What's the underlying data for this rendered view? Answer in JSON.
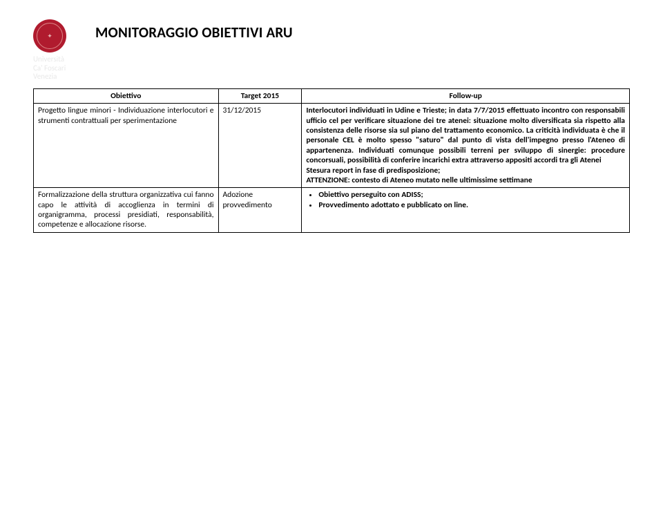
{
  "logo": {
    "univ_line1": "Università",
    "univ_line2": "Ca' Foscari",
    "univ_line3": "Venezia",
    "seal_color": "#b01b2e"
  },
  "title": "MONITORAGGIO OBIETTIVI ARU",
  "table": {
    "headers": {
      "col1": "Obiettivo",
      "col2": "Target 2015",
      "col3": "Follow-up"
    },
    "rows": [
      {
        "obiettivo": "Progetto lingue minori - Individuazione interlocutori e strumenti contrattuali per sperimentazione",
        "target": "31/12/2015",
        "followup_para1": "Interlocutori individuati in Udine e Trieste; in data 7/7/2015 effettuato incontro con responsabili ufficio cel per verificare situazione dei tre atenei: situazione molto diversificata sia rispetto alla consistenza delle risorse sia sul piano del trattamento economico. La criticità individuata è che il personale CEL è molto spesso \"saturo\" dal punto di vista dell'impegno presso l'Ateneo di appartenenza. Individuati comunque possibili terreni per sviluppo di sinergie: procedure concorsuali, possibilità di conferire incarichi extra attraverso appositi accordi tra gli Atenei",
        "followup_para2": "Stesura report in fase di predisposizione;",
        "followup_para3": "ATTENZIONE: contesto di Ateneo mutato nelle ultimissime settimane"
      },
      {
        "obiettivo": "Formalizzazione della struttura organizzativa cui fanno capo le attività di accoglienza in termini di organigramma, processi presidiati, responsabilità, competenze e allocazione risorse.",
        "target": "Adozione provvedimento",
        "followup_bullets": [
          "Obiettivo perseguito con ADISS;",
          "Provvedimento adottato e pubblicato on line."
        ]
      }
    ]
  }
}
